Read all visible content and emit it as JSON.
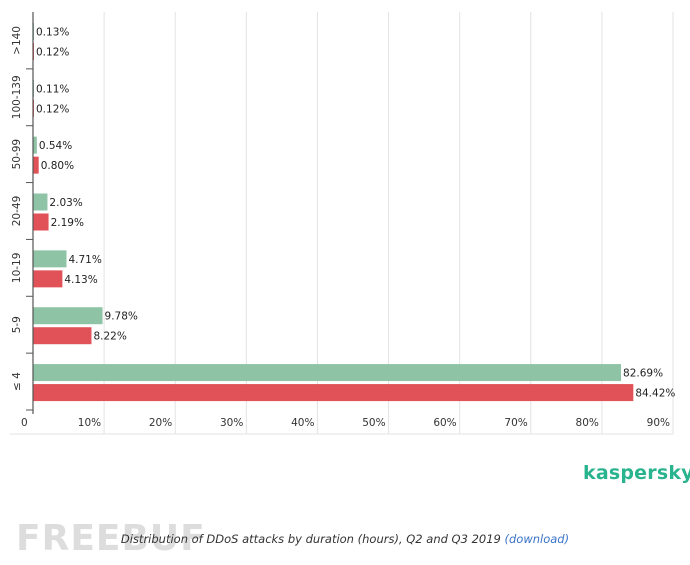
{
  "chart_data": {
    "type": "bar",
    "orientation": "horizontal",
    "title": "Distribution of DDoS attacks by duration (hours), Q2 and Q3 2019",
    "categories": [
      ">140",
      "100-139",
      "50-99",
      "20-49",
      "10-19",
      "5-9",
      "≤ 4"
    ],
    "series": [
      {
        "color": "#8fc3a5",
        "values": [
          0.13,
          0.11,
          0.54,
          2.03,
          4.71,
          9.78,
          82.69
        ],
        "labels": [
          "0.13%",
          "0.11%",
          "0.54%",
          "2.03%",
          "4.71%",
          "9.78%",
          "82.69%"
        ]
      },
      {
        "color": "#e05257",
        "values": [
          0.12,
          0.12,
          0.8,
          2.19,
          4.13,
          8.22,
          84.42
        ],
        "labels": [
          "0.12%",
          "0.12%",
          "0.80%",
          "2.19%",
          "4.13%",
          "8.22%",
          "84.42%"
        ]
      }
    ],
    "xlim": [
      0,
      90
    ],
    "xticks": [
      0,
      10,
      20,
      30,
      40,
      50,
      60,
      70,
      80,
      90
    ],
    "xtick_labels": [
      "0",
      "10%",
      "20%",
      "30%",
      "40%",
      "50%",
      "60%",
      "70%",
      "80%",
      "90%"
    ],
    "grid": true,
    "legend": "none"
  },
  "brand": {
    "logo_text": "kaspersky",
    "logo_color": "#2ab38f"
  },
  "caption": {
    "text": "Distribution of DDoS attacks by duration (hours), Q2 and Q3 2019 ",
    "link": "(download)"
  },
  "watermark": {
    "text": "FREEBUF"
  }
}
